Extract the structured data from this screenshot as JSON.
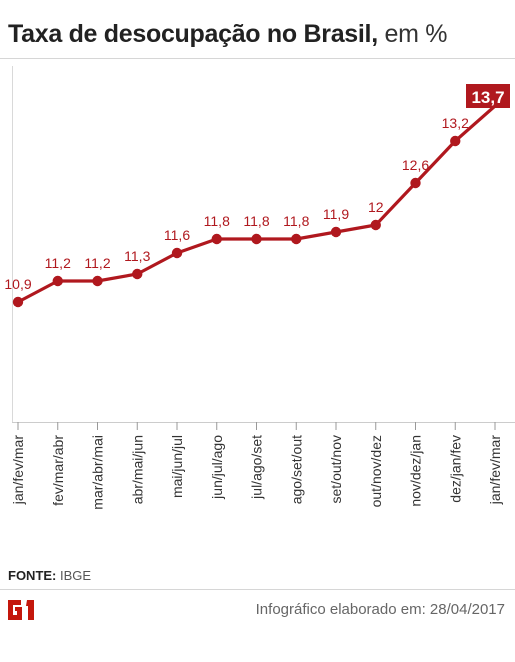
{
  "header": {
    "title": "Taxa de desocupação no Brasil,",
    "unit": "em %"
  },
  "chart_data": {
    "type": "line",
    "title": "Taxa de desocupação no Brasil, em %",
    "categories": [
      "jan/fev/mar",
      "fev/mar/abr",
      "mar/abr/mai",
      "abr/mai/jun",
      "mai/jun/jul",
      "jun/jul/ago",
      "jul/ago/set",
      "ago/set/out",
      "set/out/nov",
      "out/nov/dez",
      "nov/dez/jan",
      "dez/jan/fev",
      "jan/fev/mar"
    ],
    "series": [
      {
        "values": [
          10.9,
          11.2,
          11.2,
          11.3,
          11.6,
          11.8,
          11.8,
          11.8,
          11.9,
          12.0,
          12.6,
          13.2,
          13.7
        ]
      }
    ],
    "data_labels": [
      "10,9",
      "11,2",
      "11,2",
      "11,3",
      "11,6",
      "11,8",
      "11,8",
      "11,8",
      "11,9",
      "12",
      "12,6",
      "13,2",
      "13,7"
    ],
    "highlight_last": true,
    "grid": false,
    "legend": "none",
    "colors": {
      "line": "#b0181e",
      "label": "#b0181e",
      "highlight_bg": "#b0181e",
      "highlight_text": "#ffffff"
    }
  },
  "footer": {
    "source_label": "FONTE:",
    "source_value": "IBGE",
    "logo_text": "G1",
    "credit": "Infográfico elaborado em: 28/04/2017"
  }
}
